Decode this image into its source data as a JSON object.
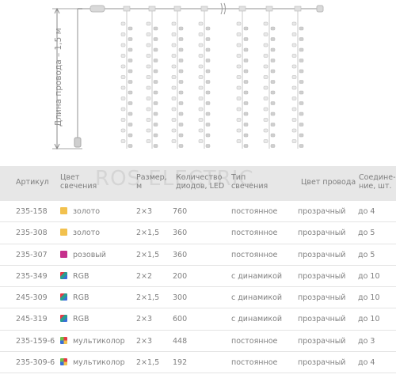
{
  "diagram": {
    "dimension_label": "Длина провода – 1,5 м",
    "led_colors": [
      "#e8e8e8",
      "#cfcfcf"
    ],
    "wire_color": "#c8c8c8"
  },
  "table": {
    "watermark": "ROS ELECTRIC",
    "headers": {
      "article": "Артикул",
      "glow_color": "Цвет свечения",
      "size": "Размер, м",
      "led_count": "Количество диодов, LED",
      "glow_type": "Тип свечения",
      "wire_color": "Цвет провода",
      "connections": "Соедине-ние, шт."
    },
    "rows": [
      {
        "article": "235-158",
        "swatch": "#f2c14e",
        "color": "золото",
        "size": "2×3",
        "leds": "760",
        "type": "постоянное",
        "wire": "прозрачный",
        "conn": "до 4"
      },
      {
        "article": "235-308",
        "swatch": "#f2c14e",
        "color": "золото",
        "size": "2×1,5",
        "leds": "360",
        "type": "постоянное",
        "wire": "прозрачный",
        "conn": "до 5"
      },
      {
        "article": "235-307",
        "swatch": "#c6308c",
        "color": "розовый",
        "size": "2×1,5",
        "leds": "360",
        "type": "постоянное",
        "wire": "прозрачный",
        "conn": "до 5"
      },
      {
        "article": "235-349",
        "swatch": "rgb",
        "color": "RGB",
        "size": "2×2",
        "leds": "200",
        "type": "с динамикой",
        "wire": "прозрачный",
        "conn": "до 10"
      },
      {
        "article": "245-309",
        "swatch": "rgb",
        "color": "RGB",
        "size": "2×1,5",
        "leds": "300",
        "type": "с динамикой",
        "wire": "прозрачный",
        "conn": "до 10"
      },
      {
        "article": "245-319",
        "swatch": "rgb",
        "color": "RGB",
        "size": "2×3",
        "leds": "600",
        "type": "с динамикой",
        "wire": "прозрачный",
        "conn": "до 10"
      },
      {
        "article": "235-159-6",
        "swatch": "multi",
        "color": "мультиколор",
        "size": "2×3",
        "leds": "448",
        "type": "постоянное",
        "wire": "прозрачный",
        "conn": "до 3"
      },
      {
        "article": "235-309-6",
        "swatch": "multi",
        "color": "мультиколор",
        "size": "2×1,5",
        "leds": "192",
        "type": "постоянное",
        "wire": "прозрачный",
        "conn": "до 4"
      }
    ]
  }
}
